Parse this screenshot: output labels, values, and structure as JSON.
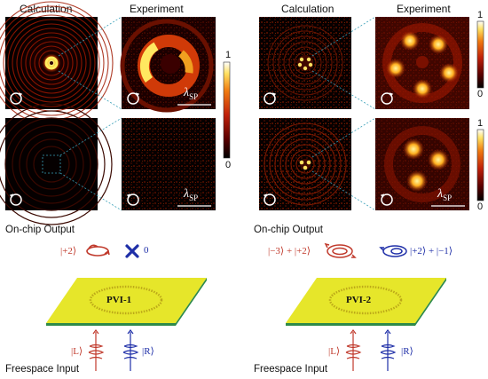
{
  "header": {
    "calc_left": "Calculation",
    "exp_left": "Experiment",
    "calc_right": "Calculation",
    "exp_right": "Experiment"
  },
  "colorbar": {
    "top": "1",
    "bottom": "0",
    "stops": [
      "#000000",
      "#5a0000",
      "#c0200a",
      "#f07a10",
      "#ffe060",
      "#ffffff"
    ]
  },
  "wavelength_label": "λ",
  "wavelength_sub": "SP",
  "onchip_left": {
    "title": "On-chip Output",
    "ket": "|+2⟩",
    "zero": "0"
  },
  "onchip_right": {
    "title": "On-chip Output",
    "red_expr": "|−3⟩ + |+2⟩",
    "blue_expr": "|+2⟩ + |−1⟩"
  },
  "devices": {
    "left": "PVI-1",
    "right": "PVI-2"
  },
  "freespace_left": {
    "title": "Freespace Input",
    "ket_L": "|L⟩",
    "ket_R": "|R⟩"
  },
  "freespace_right": {
    "title": "Freespace Input",
    "ket_L": "|L⟩",
    "ket_R": "|R⟩"
  },
  "colors": {
    "red": "#c0392b",
    "blue": "#1f2fa8",
    "plate": "#e6e62a",
    "plate_edge": "#2e8a4a"
  }
}
